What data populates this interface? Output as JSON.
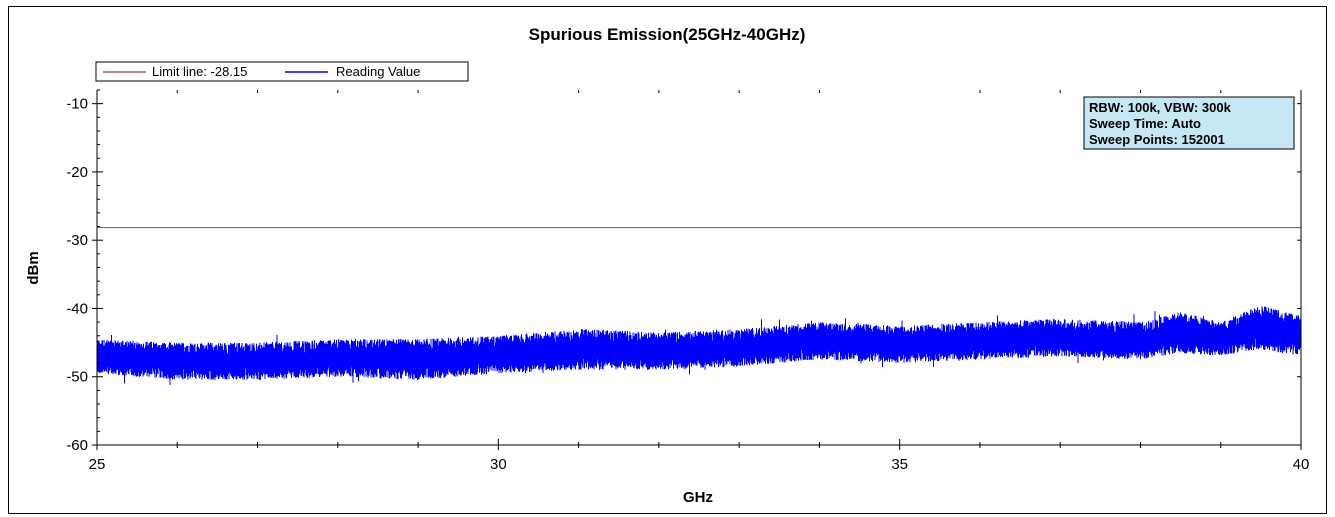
{
  "chart_data": {
    "type": "line",
    "title": "Spurious Emission(25GHz-40GHz)",
    "xlabel": "GHz",
    "ylabel": "dBm",
    "xlim": [
      25,
      40
    ],
    "ylim": [
      -60,
      -8
    ],
    "x_ticks": [
      "25",
      "30",
      "35",
      "40"
    ],
    "y_ticks": [
      "-10",
      "-20",
      "-30",
      "-40",
      "-50",
      "-60"
    ],
    "grid": false,
    "legend": {
      "placement": "top-left",
      "entries": [
        {
          "label": "Limit line: -28.15",
          "color": "#c0504d"
        },
        {
          "label": "Reading Value",
          "color": "#0000ff"
        }
      ]
    },
    "info_box": {
      "lines": [
        "RBW: 100k, VBW: 300k",
        "Sweep Time: Auto",
        "Sweep Points: 152001"
      ],
      "background": "#c6e8f5"
    },
    "series": [
      {
        "name": "Limit line: -28.15",
        "color": "#c0504d",
        "x": [
          25,
          40
        ],
        "y": [
          -28.15,
          -28.15
        ]
      },
      {
        "name": "Reading Value",
        "color": "#0000ff",
        "x": [
          25,
          26,
          27,
          28,
          29,
          30,
          31,
          32,
          33,
          34,
          35,
          36,
          37,
          38,
          38.5,
          39,
          39.5,
          40
        ],
        "y_upper": [
          -44.5,
          -45,
          -45,
          -44.5,
          -44.5,
          -44,
          -43,
          -43.5,
          -43,
          -42,
          -42.5,
          -42,
          -41.5,
          -42,
          -40.5,
          -42,
          -39.5,
          -41
        ],
        "y_lower": [
          -49.5,
          -50.5,
          -50.5,
          -50,
          -50.5,
          -49.5,
          -49,
          -49,
          -48.5,
          -47.5,
          -48,
          -47.5,
          -47,
          -47.5,
          -46.5,
          -47,
          -46,
          -47
        ]
      }
    ]
  }
}
